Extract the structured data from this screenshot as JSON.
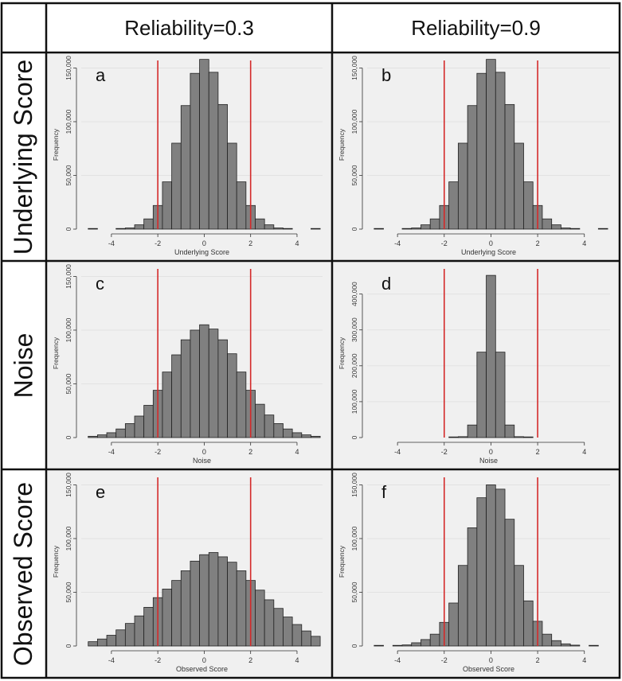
{
  "header": {
    "col_titles": [
      "Reliability=0.3",
      "Reliability=0.9"
    ],
    "row_titles": [
      "Underlying Score",
      "Noise",
      "Observed Score"
    ]
  },
  "colors": {
    "bar": "#808080",
    "bar_edge": "#222222",
    "ref_line": "#d42a2a",
    "panel_bg": "#f0f0f0",
    "gridline": "#e2e2e2"
  },
  "chart_data": [
    {
      "type": "bar",
      "panel_label": "a",
      "title": "",
      "xlabel": "Underlying Score",
      "ylabel": "Frequency",
      "xlim": [
        -5.3,
        5.1
      ],
      "ylim": [
        0,
        157000
      ],
      "xticks": [
        -4,
        -2,
        0,
        2,
        4
      ],
      "xtick_labels": [
        "-4",
        "-2",
        "0",
        "2",
        "4"
      ],
      "yticks": [
        0,
        50000,
        100000,
        150000
      ],
      "ytick_labels": [
        "0",
        "50,000",
        "100,000",
        "150,000"
      ],
      "bin_width": 0.4,
      "bin_starts": [
        -5.0,
        -3.8,
        -3.4,
        -3.0,
        -2.6,
        -2.2,
        -1.8,
        -1.4,
        -1.0,
        -0.6,
        -0.2,
        0.2,
        0.6,
        1.0,
        1.4,
        1.8,
        2.2,
        2.6,
        3.0,
        3.4,
        4.6
      ],
      "values": [
        150,
        250,
        1100,
        4000,
        9500,
        22000,
        44000,
        80000,
        115000,
        145000,
        158000,
        146000,
        116000,
        80000,
        44000,
        22000,
        9500,
        4000,
        1100,
        250,
        150
      ],
      "ref_lines": [
        -2,
        2
      ]
    },
    {
      "type": "bar",
      "panel_label": "b",
      "title": "",
      "xlabel": "Underlying Score",
      "ylabel": "Frequency",
      "xlim": [
        -5.3,
        5.1
      ],
      "ylim": [
        0,
        157000
      ],
      "xticks": [
        -4,
        -2,
        0,
        2,
        4
      ],
      "xtick_labels": [
        "-4",
        "-2",
        "0",
        "2",
        "4"
      ],
      "yticks": [
        0,
        50000,
        100000,
        150000
      ],
      "ytick_labels": [
        "0",
        "50,000",
        "100,000",
        "150,000"
      ],
      "bin_width": 0.4,
      "bin_starts": [
        -5.0,
        -3.8,
        -3.4,
        -3.0,
        -2.6,
        -2.2,
        -1.8,
        -1.4,
        -1.0,
        -0.6,
        -0.2,
        0.2,
        0.6,
        1.0,
        1.4,
        1.8,
        2.2,
        2.6,
        3.0,
        3.4,
        4.6
      ],
      "values": [
        150,
        250,
        1100,
        4000,
        9500,
        22000,
        44000,
        80000,
        115000,
        145000,
        158000,
        146000,
        116000,
        80000,
        44000,
        22000,
        9500,
        4000,
        1100,
        250,
        150
      ],
      "ref_lines": [
        -2,
        2
      ]
    },
    {
      "type": "bar",
      "panel_label": "c",
      "title": "",
      "xlabel": "Noise",
      "ylabel": "Frequency",
      "xlim": [
        -5.3,
        5.1
      ],
      "ylim": [
        0,
        157000
      ],
      "xticks": [
        -4,
        -2,
        0,
        2,
        4
      ],
      "xtick_labels": [
        "-4",
        "-2",
        "0",
        "2",
        "4"
      ],
      "yticks": [
        0,
        50000,
        100000,
        150000
      ],
      "ytick_labels": [
        "0",
        "50,000",
        "100,000",
        "150,000"
      ],
      "bin_width": 0.4,
      "bin_starts": [
        -5.0,
        -4.6,
        -4.2,
        -3.8,
        -3.4,
        -3.0,
        -2.6,
        -2.2,
        -1.8,
        -1.4,
        -1.0,
        -0.6,
        -0.2,
        0.2,
        0.6,
        1.0,
        1.4,
        1.8,
        2.2,
        2.6,
        3.0,
        3.4,
        3.8,
        4.2,
        4.6
      ],
      "values": [
        1200,
        2500,
        4500,
        8000,
        13000,
        20000,
        30000,
        44000,
        61000,
        77000,
        91000,
        100000,
        105000,
        101000,
        91000,
        78000,
        61000,
        44000,
        31000,
        21000,
        13000,
        8000,
        4500,
        2500,
        1200
      ],
      "ref_lines": [
        -2,
        2
      ]
    },
    {
      "type": "bar",
      "panel_label": "d",
      "title": "",
      "xlabel": "Noise",
      "ylabel": "Frequency",
      "xlim": [
        -5.3,
        5.1
      ],
      "ylim": [
        0,
        470000
      ],
      "xticks": [
        -4,
        -2,
        0,
        2,
        4
      ],
      "xtick_labels": [
        "-4",
        "-2",
        "0",
        "2",
        "4"
      ],
      "yticks": [
        0,
        100000,
        200000,
        300000,
        400000
      ],
      "ytick_labels": [
        "0",
        "100,000",
        "200,000",
        "300,000",
        "400,000"
      ],
      "bin_width": 0.4,
      "bin_starts": [
        -1.8,
        -1.4,
        -1.0,
        -0.6,
        -0.2,
        0.2,
        0.6,
        1.0,
        1.4
      ],
      "values": [
        500,
        2500,
        35000,
        238000,
        452000,
        238000,
        35000,
        2500,
        500
      ],
      "ref_lines": [
        -2,
        2
      ]
    },
    {
      "type": "bar",
      "panel_label": "e",
      "title": "",
      "xlabel": "Observed Score",
      "ylabel": "Frequency",
      "xlim": [
        -5.3,
        5.1
      ],
      "ylim": [
        0,
        157000
      ],
      "xticks": [
        -4,
        -2,
        0,
        2,
        4
      ],
      "xtick_labels": [
        "-4",
        "-2",
        "0",
        "2",
        "4"
      ],
      "yticks": [
        0,
        50000,
        100000,
        150000
      ],
      "ytick_labels": [
        "0",
        "50,000",
        "100,000",
        "150,000"
      ],
      "bin_width": 0.4,
      "bin_starts": [
        -5.0,
        -4.6,
        -4.2,
        -3.8,
        -3.4,
        -3.0,
        -2.6,
        -2.2,
        -1.8,
        -1.4,
        -1.0,
        -0.6,
        -0.2,
        0.2,
        0.6,
        1.0,
        1.4,
        1.8,
        2.2,
        2.6,
        3.0,
        3.4,
        3.8,
        4.2,
        4.6
      ],
      "values": [
        4000,
        6500,
        10000,
        15000,
        21000,
        28000,
        36000,
        45000,
        53000,
        61000,
        70000,
        79000,
        85000,
        87000,
        83000,
        78000,
        70000,
        61000,
        52000,
        43000,
        35000,
        27000,
        20000,
        14000,
        9000
      ],
      "ref_lines": [
        -2,
        2
      ]
    },
    {
      "type": "bar",
      "panel_label": "f",
      "title": "",
      "xlabel": "Observed Score",
      "ylabel": "Frequency",
      "xlim": [
        -5.3,
        5.1
      ],
      "ylim": [
        0,
        157000
      ],
      "xticks": [
        -4,
        -2,
        0,
        2,
        4
      ],
      "xtick_labels": [
        "-4",
        "-2",
        "0",
        "2",
        "4"
      ],
      "yticks": [
        0,
        50000,
        100000,
        150000
      ],
      "ytick_labels": [
        "0",
        "50,000",
        "100,000",
        "150,000"
      ],
      "bin_width": 0.4,
      "bin_starts": [
        -5.0,
        -4.2,
        -3.8,
        -3.4,
        -3.0,
        -2.6,
        -2.2,
        -1.8,
        -1.4,
        -1.0,
        -0.6,
        -0.2,
        0.2,
        0.6,
        1.0,
        1.4,
        1.8,
        2.2,
        2.6,
        3.0,
        3.4,
        4.2
      ],
      "values": [
        150,
        300,
        1000,
        3000,
        6000,
        11000,
        22000,
        40000,
        75000,
        110000,
        138000,
        150000,
        146000,
        118000,
        75000,
        42000,
        23000,
        11000,
        5000,
        2000,
        800,
        150
      ],
      "ref_lines": [
        -2,
        2
      ]
    }
  ]
}
